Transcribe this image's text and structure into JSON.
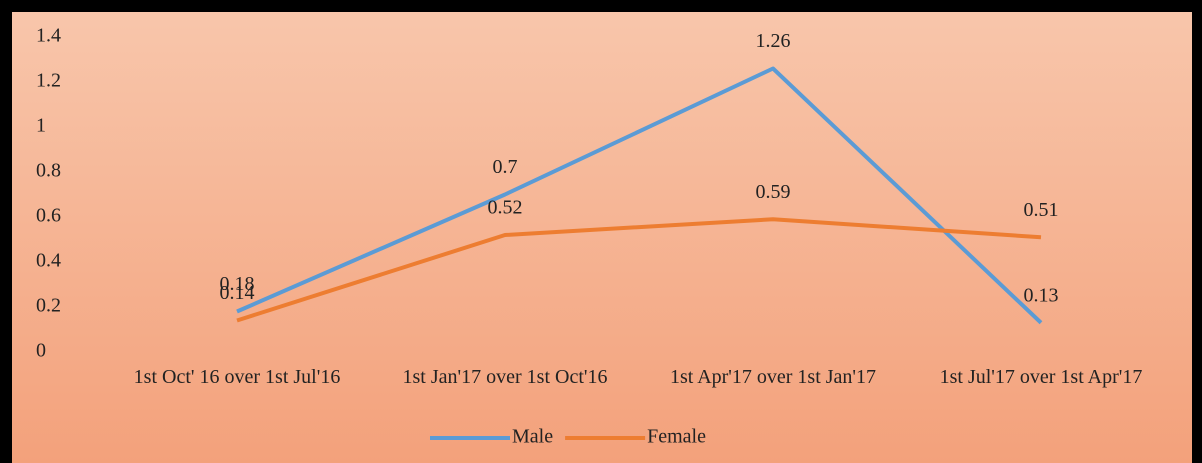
{
  "chart_data": {
    "type": "line",
    "categories": [
      "1st Oct' 16 over 1st Jul'16",
      "1st Jan'17 over 1st Oct'16",
      "1st Apr'17 over 1st Jan'17",
      "1st Jul'17 over 1st Apr'17"
    ],
    "series": [
      {
        "name": "Male",
        "color": "#5b9bd5",
        "values": [
          0.18,
          0.7,
          1.26,
          0.13
        ]
      },
      {
        "name": "Female",
        "color": "#ed7d31",
        "values": [
          0.14,
          0.52,
          0.59,
          0.51
        ]
      }
    ],
    "ylim": [
      0,
      1.4
    ],
    "yticks": [
      0,
      0.2,
      0.4,
      0.6,
      0.8,
      1,
      1.2,
      1.4
    ],
    "grid": false,
    "legend": "bottom"
  }
}
